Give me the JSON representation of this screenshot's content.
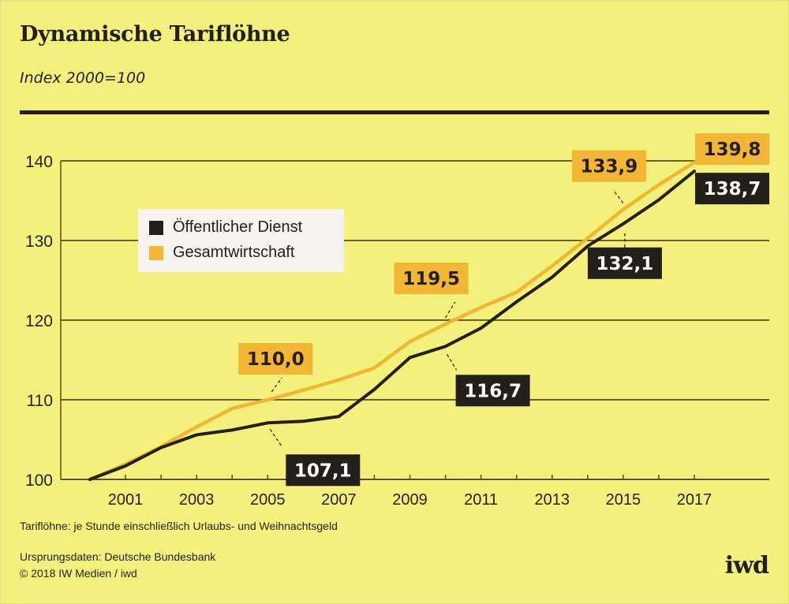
{
  "header": {
    "title": "Dynamische Tariflöhne",
    "subtitle": "Index 2000=100"
  },
  "legend": {
    "items": [
      {
        "label": "Öffentlicher Dienst",
        "color": "#231f1a"
      },
      {
        "label": "Gesamtwirtschaft",
        "color": "#f2b632"
      }
    ]
  },
  "footer": {
    "note": "Tariflöhne: je Stunde einschließlich Urlaubs- und Weihnachtsgeld",
    "source": "Ursprungsdaten: Deutsche Bundesbank",
    "copyright": "© 2018 IW Medien / iwd",
    "logo": "iwd"
  },
  "colors": {
    "background": "#f4f07c",
    "oeffentlicher_dienst": "#231f1a",
    "gesamtwirtschaft": "#f2b632",
    "label_text_light": "#ffffff",
    "label_text_dark": "#231f1a"
  },
  "chart_data": {
    "type": "line",
    "title": "Dynamische Tariflöhne",
    "subtitle": "Index 2000=100",
    "xlabel": "",
    "ylabel": "",
    "x": [
      2000,
      2001,
      2002,
      2003,
      2004,
      2005,
      2006,
      2007,
      2008,
      2009,
      2010,
      2011,
      2012,
      2013,
      2014,
      2015,
      2016,
      2017
    ],
    "xlim": [
      2000,
      2019
    ],
    "ylim": [
      100,
      140
    ],
    "yticks": [
      100,
      110,
      120,
      130,
      140
    ],
    "ytick_labels": [
      "100",
      "110",
      "120",
      "130",
      "140"
    ],
    "xticks": [
      2001,
      2002,
      2003,
      2004,
      2005,
      2006,
      2007,
      2008,
      2009,
      2010,
      2011,
      2012,
      2013,
      2014,
      2015,
      2016,
      2017
    ],
    "xtick_labels": [
      "2001",
      "2003",
      "2005",
      "2007",
      "2009",
      "2011",
      "2013",
      "2015",
      "2017"
    ],
    "xtick_label_years": [
      2001,
      2003,
      2005,
      2007,
      2009,
      2011,
      2013,
      2015,
      2017
    ],
    "grid": true,
    "legend_position": "upper-left",
    "series": [
      {
        "name": "Öffentlicher Dienst",
        "color": "#231f1a",
        "values": [
          100.0,
          101.7,
          104.0,
          105.6,
          106.2,
          107.1,
          107.3,
          107.9,
          111.3,
          115.3,
          116.7,
          119.0,
          122.3,
          125.4,
          129.3,
          132.1,
          135.1,
          138.7
        ]
      },
      {
        "name": "Gesamtwirtschaft",
        "color": "#f2b632",
        "values": [
          100.0,
          101.9,
          104.1,
          106.6,
          108.9,
          110.0,
          111.2,
          112.5,
          114.0,
          117.3,
          119.5,
          121.6,
          123.5,
          126.8,
          130.3,
          133.9,
          137.0,
          139.8
        ]
      }
    ],
    "annotations": [
      {
        "series": "Gesamtwirtschaft",
        "year": 2005,
        "value": 110.0,
        "text": "110,0",
        "style": "amber"
      },
      {
        "series": "Öffentlicher Dienst",
        "year": 2005,
        "value": 107.1,
        "text": "107,1",
        "style": "dark"
      },
      {
        "series": "Gesamtwirtschaft",
        "year": 2010,
        "value": 119.5,
        "text": "119,5",
        "style": "amber"
      },
      {
        "series": "Öffentlicher Dienst",
        "year": 2010,
        "value": 116.7,
        "text": "116,7",
        "style": "dark"
      },
      {
        "series": "Gesamtwirtschaft",
        "year": 2015,
        "value": 133.9,
        "text": "133,9",
        "style": "amber"
      },
      {
        "series": "Öffentlicher Dienst",
        "year": 2015,
        "value": 132.1,
        "text": "132,1",
        "style": "dark"
      },
      {
        "series": "Gesamtwirtschaft",
        "year": 2017,
        "value": 139.8,
        "text": "139,8",
        "style": "amber"
      },
      {
        "series": "Öffentlicher Dienst",
        "year": 2017,
        "value": 138.7,
        "text": "138,7",
        "style": "dark"
      }
    ]
  }
}
